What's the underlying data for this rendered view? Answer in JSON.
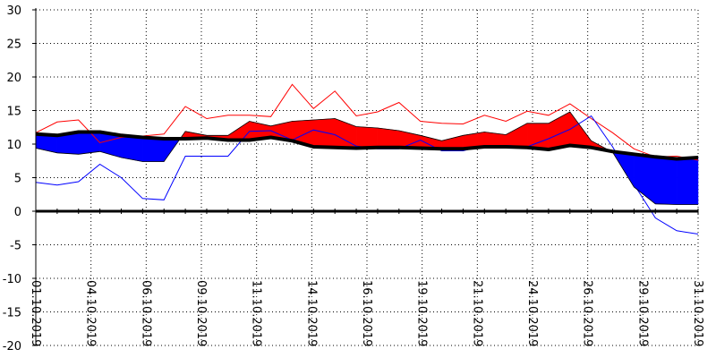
{
  "chart_data": {
    "type": "area",
    "title": "",
    "xlabel": "",
    "ylabel": "",
    "ylim": [
      -20,
      30
    ],
    "yticks": [
      30,
      25,
      20,
      15,
      10,
      5,
      0,
      -5,
      -10,
      -15,
      -20
    ],
    "xticks": [
      "01.10.2019",
      "04.10.2019",
      "06.10.2019",
      "09.10.2019",
      "11.10.2019",
      "14.10.2019",
      "16.10.2019",
      "19.10.2019",
      "21.10.2019",
      "24.10.2019",
      "26.10.2019",
      "29.10.2019",
      "31.10.2019"
    ],
    "grid": true,
    "colors": {
      "above": "#ff0000",
      "below": "#0000ff",
      "reference": "#000000",
      "zero_line": "#000000",
      "grid": "#000000"
    },
    "series": [
      {
        "role": "reference",
        "values": [
          11.5,
          11.3,
          11.8,
          11.8,
          11.3,
          11.0,
          10.8,
          10.8,
          10.9,
          10.6,
          10.6,
          11.0,
          10.5,
          9.6,
          9.5,
          9.4,
          9.5,
          9.5,
          9.4,
          9.3,
          9.3,
          9.6,
          9.6,
          9.5,
          9.2,
          9.8,
          9.5,
          8.9,
          8.5,
          8.1,
          7.8,
          8.0
        ]
      },
      {
        "role": "mean",
        "values": [
          9.4,
          8.7,
          8.5,
          8.9,
          8.0,
          7.4,
          7.4,
          11.9,
          11.3,
          11.3,
          13.4,
          12.7,
          13.4,
          13.6,
          13.8,
          12.6,
          12.4,
          12.0,
          11.3,
          10.5,
          11.3,
          11.8,
          11.4,
          13.1,
          13.1,
          14.8,
          10.5,
          8.8,
          3.6,
          1.1,
          1.0,
          1.0
        ]
      },
      {
        "role": "max",
        "values": [
          11.7,
          13.3,
          13.6,
          10.2,
          11.0,
          11.2,
          11.5,
          15.6,
          13.8,
          14.3,
          14.3,
          14.1,
          18.9,
          15.3,
          17.9,
          14.2,
          14.8,
          16.2,
          13.4,
          13.1,
          13.0,
          14.3,
          13.4,
          14.9,
          14.3,
          16.0,
          13.8,
          11.7,
          9.3,
          8.1,
          8.2,
          7.6
        ]
      },
      {
        "role": "min",
        "values": [
          4.3,
          3.9,
          4.4,
          7.0,
          5.0,
          1.9,
          1.7,
          8.2,
          8.2,
          8.2,
          11.9,
          12.0,
          10.6,
          12.1,
          11.4,
          9.7,
          9.3,
          9.3,
          10.6,
          9.0,
          9.0,
          9.8,
          9.8,
          9.6,
          10.8,
          12.2,
          14.2,
          9.6,
          4.0,
          -1.0,
          -2.9,
          -3.4
        ]
      }
    ]
  }
}
